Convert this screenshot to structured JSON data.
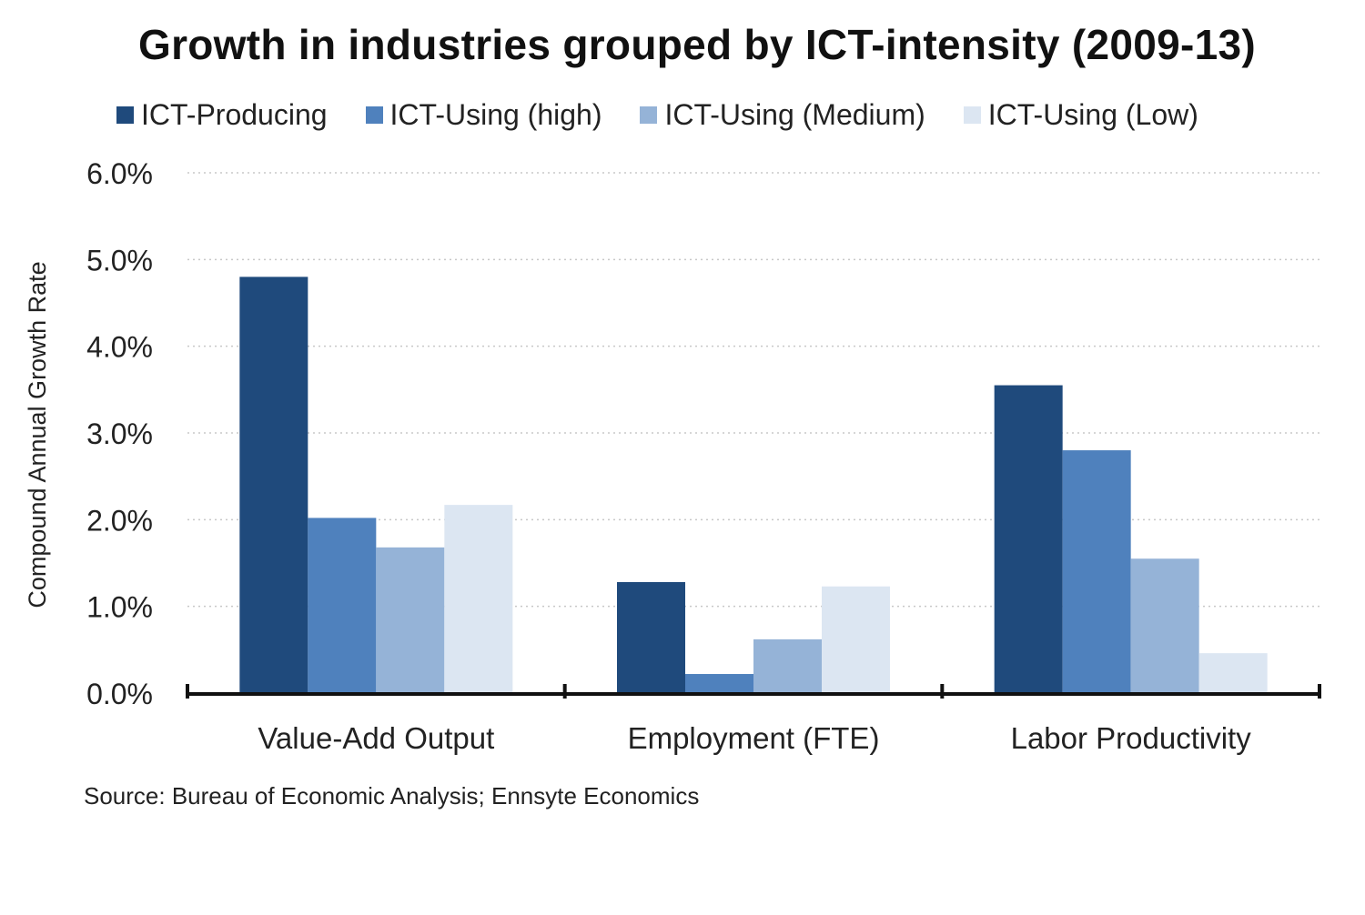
{
  "chart_data": {
    "type": "bar",
    "title": "Growth in industries grouped by ICT-intensity (2009-13)",
    "ylabel": "Compound Annual Growth Rate",
    "xlabel": "",
    "ylim": [
      0,
      6
    ],
    "yticks": [
      "0.0%",
      "1.0%",
      "2.0%",
      "3.0%",
      "4.0%",
      "5.0%",
      "6.0%"
    ],
    "grid": true,
    "legend_position": "top",
    "categories": [
      "Value-Add Output",
      "Employment (FTE)",
      "Labor Productivity"
    ],
    "series": [
      {
        "name": "ICT-Producing",
        "color": "#1F4A7C",
        "values": [
          4.8,
          1.28,
          3.55
        ]
      },
      {
        "name": "ICT-Using (high)",
        "color": "#4F81BD",
        "values": [
          2.02,
          0.22,
          2.8
        ]
      },
      {
        "name": "ICT-Using (Medium)",
        "color": "#95B3D7",
        "values": [
          1.68,
          0.62,
          1.55
        ]
      },
      {
        "name": "ICT-Using (Low)",
        "color": "#DCE6F2",
        "values": [
          2.17,
          1.23,
          0.46
        ]
      }
    ]
  },
  "source": "Source: Bureau of Economic Analysis; Ennsyte Economics"
}
